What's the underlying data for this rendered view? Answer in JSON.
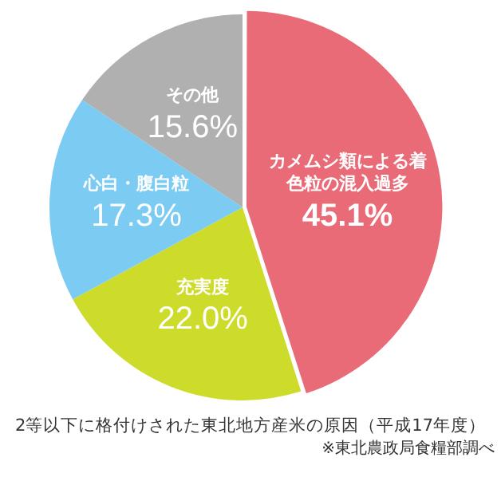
{
  "chart_data": {
    "type": "pie",
    "title": "2等以下に格付けされた東北地方産米の原因（平成17年度）",
    "annotations": [
      "※東北農政局食糧部調べ"
    ],
    "categories": [
      "カメムシ類による着色粒の混入過多",
      "充実度",
      "心白・腹白粒",
      "その他"
    ],
    "values": [
      45.1,
      22.0,
      17.3,
      15.6
    ],
    "value_labels": [
      "45.1%",
      "22.0%",
      "17.3%",
      "15.6%"
    ],
    "colors": [
      "#e96b78",
      "#cddb2a",
      "#7ccbf2",
      "#b0b0b0"
    ],
    "legend": false
  }
}
